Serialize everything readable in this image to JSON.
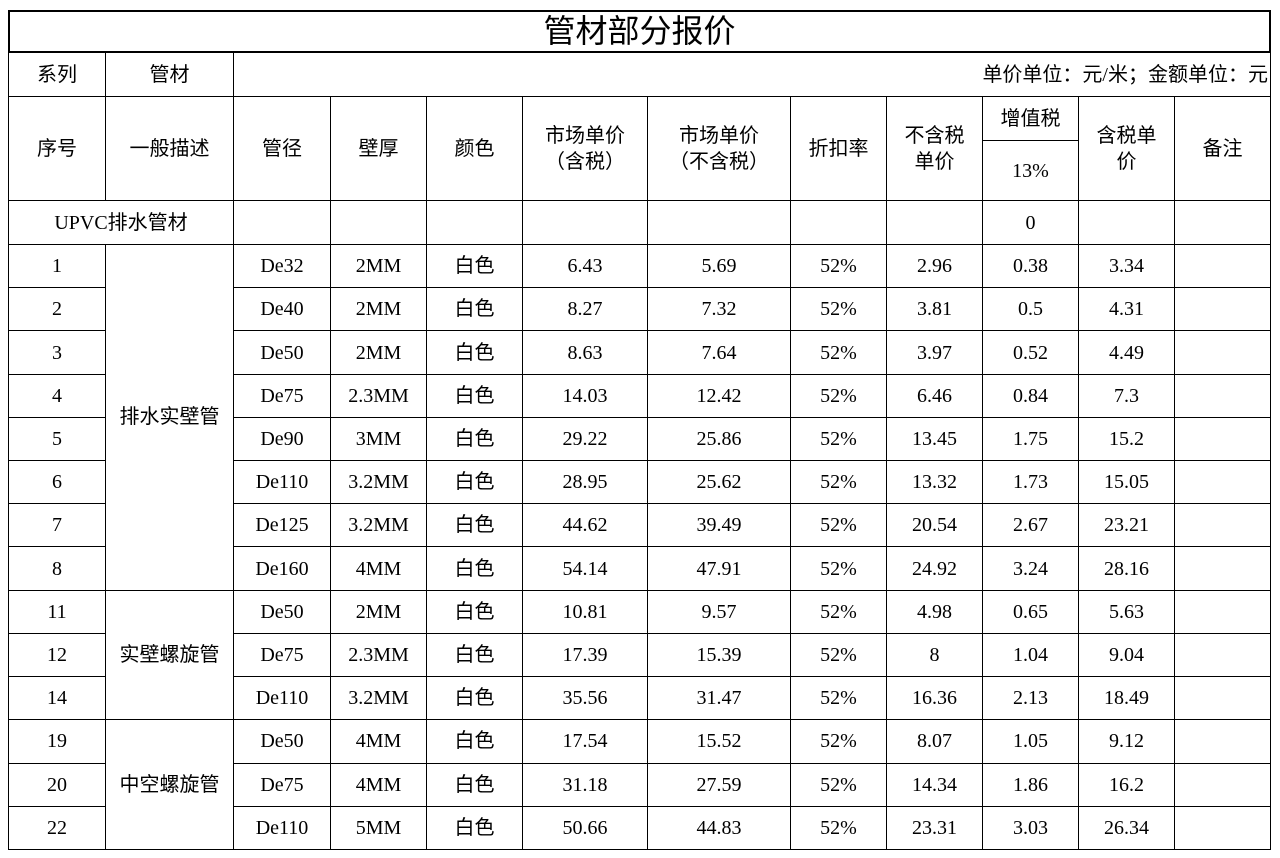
{
  "title": "管材部分报价",
  "unit_row": {
    "series": "系列",
    "pipe": "管材",
    "note": "单价单位：元/米；金额单位：元"
  },
  "headers": [
    "序号",
    "一般描述",
    "管径",
    "壁厚",
    "颜色",
    "市场单价\n（含税）",
    "市场单价\n（不含税）",
    "折扣率",
    "不含税\n单价",
    "增值税",
    "含税单\n价",
    "备注"
  ],
  "tax_rate": "13%",
  "category": {
    "name": "UPVC排水管材",
    "tax": "0"
  },
  "groups": [
    {
      "name": "排水实壁管",
      "rows": [
        [
          "1",
          "De32",
          "2MM",
          "白色",
          "6.43",
          "5.69",
          "52%",
          "2.96",
          "0.38",
          "3.34"
        ],
        [
          "2",
          "De40",
          "2MM",
          "白色",
          "8.27",
          "7.32",
          "52%",
          "3.81",
          "0.5",
          "4.31"
        ],
        [
          "3",
          "De50",
          "2MM",
          "白色",
          "8.63",
          "7.64",
          "52%",
          "3.97",
          "0.52",
          "4.49"
        ],
        [
          "4",
          "De75",
          "2.3MM",
          "白色",
          "14.03",
          "12.42",
          "52%",
          "6.46",
          "0.84",
          "7.3"
        ],
        [
          "5",
          "De90",
          "3MM",
          "白色",
          "29.22",
          "25.86",
          "52%",
          "13.45",
          "1.75",
          "15.2"
        ],
        [
          "6",
          "De110",
          "3.2MM",
          "白色",
          "28.95",
          "25.62",
          "52%",
          "13.32",
          "1.73",
          "15.05"
        ],
        [
          "7",
          "De125",
          "3.2MM",
          "白色",
          "44.62",
          "39.49",
          "52%",
          "20.54",
          "2.67",
          "23.21"
        ],
        [
          "8",
          "De160",
          "4MM",
          "白色",
          "54.14",
          "47.91",
          "52%",
          "24.92",
          "3.24",
          "28.16"
        ]
      ]
    },
    {
      "name": "实壁螺旋管",
      "rows": [
        [
          "11",
          "De50",
          "2MM",
          "白色",
          "10.81",
          "9.57",
          "52%",
          "4.98",
          "0.65",
          "5.63"
        ],
        [
          "12",
          "De75",
          "2.3MM",
          "白色",
          "17.39",
          "15.39",
          "52%",
          "8",
          "1.04",
          "9.04"
        ],
        [
          "14",
          "De110",
          "3.2MM",
          "白色",
          "35.56",
          "31.47",
          "52%",
          "16.36",
          "2.13",
          "18.49"
        ]
      ]
    },
    {
      "name": "中空螺旋管",
      "rows": [
        [
          "19",
          "De50",
          "4MM",
          "白色",
          "17.54",
          "15.52",
          "52%",
          "8.07",
          "1.05",
          "9.12"
        ],
        [
          "20",
          "De75",
          "4MM",
          "白色",
          "31.18",
          "27.59",
          "52%",
          "14.34",
          "1.86",
          "16.2"
        ],
        [
          "22",
          "De110",
          "5MM",
          "白色",
          "50.66",
          "44.83",
          "52%",
          "23.31",
          "3.03",
          "26.34"
        ]
      ]
    }
  ]
}
